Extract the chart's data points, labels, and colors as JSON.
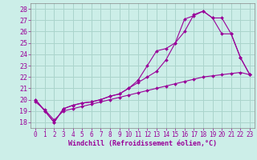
{
  "xlabel": "Windchill (Refroidissement éolien,°C)",
  "bg_color": "#cceee8",
  "grid_color": "#aad4cc",
  "line_color": "#990099",
  "xlim": [
    -0.5,
    23.5
  ],
  "ylim": [
    17.5,
    28.5
  ],
  "xticks": [
    0,
    1,
    2,
    3,
    4,
    5,
    6,
    7,
    8,
    9,
    10,
    11,
    12,
    13,
    14,
    15,
    16,
    17,
    18,
    19,
    20,
    21,
    22,
    23
  ],
  "yticks": [
    18,
    19,
    20,
    21,
    22,
    23,
    24,
    25,
    26,
    27,
    28
  ],
  "line1_x": [
    0,
    1,
    2,
    3,
    4,
    5,
    6,
    7,
    8,
    9,
    10,
    11,
    12,
    13,
    14,
    15,
    16,
    17,
    18,
    19,
    20,
    21,
    22,
    23
  ],
  "line1_y": [
    20.0,
    19.0,
    18.0,
    19.2,
    19.5,
    19.7,
    19.8,
    20.0,
    20.3,
    20.5,
    21.0,
    21.5,
    22.0,
    22.5,
    23.5,
    25.0,
    27.1,
    27.4,
    27.8,
    27.2,
    27.2,
    25.8,
    23.7,
    22.2
  ],
  "line2_x": [
    0,
    1,
    2,
    3,
    4,
    5,
    6,
    7,
    8,
    9,
    10,
    11,
    12,
    13,
    14,
    15,
    16,
    17,
    18,
    19,
    20,
    21,
    22,
    23
  ],
  "line2_y": [
    20.0,
    19.0,
    18.0,
    19.2,
    19.5,
    19.7,
    19.8,
    20.0,
    20.3,
    20.5,
    21.0,
    21.7,
    23.0,
    24.3,
    24.5,
    25.0,
    26.0,
    27.5,
    27.8,
    27.2,
    25.8,
    25.8,
    23.7,
    22.2
  ],
  "line3_x": [
    0,
    1,
    2,
    3,
    4,
    5,
    6,
    7,
    8,
    9,
    10,
    11,
    12,
    13,
    14,
    15,
    16,
    17,
    18,
    19,
    20,
    21,
    22,
    23
  ],
  "line3_y": [
    19.8,
    19.1,
    18.2,
    19.0,
    19.2,
    19.4,
    19.6,
    19.8,
    20.0,
    20.2,
    20.4,
    20.6,
    20.8,
    21.0,
    21.2,
    21.4,
    21.6,
    21.8,
    22.0,
    22.1,
    22.2,
    22.3,
    22.4,
    22.2
  ],
  "xlabel_color": "#990099",
  "tick_color": "#990099",
  "tick_fontsize": 5.5,
  "xlabel_fontsize": 6.0
}
